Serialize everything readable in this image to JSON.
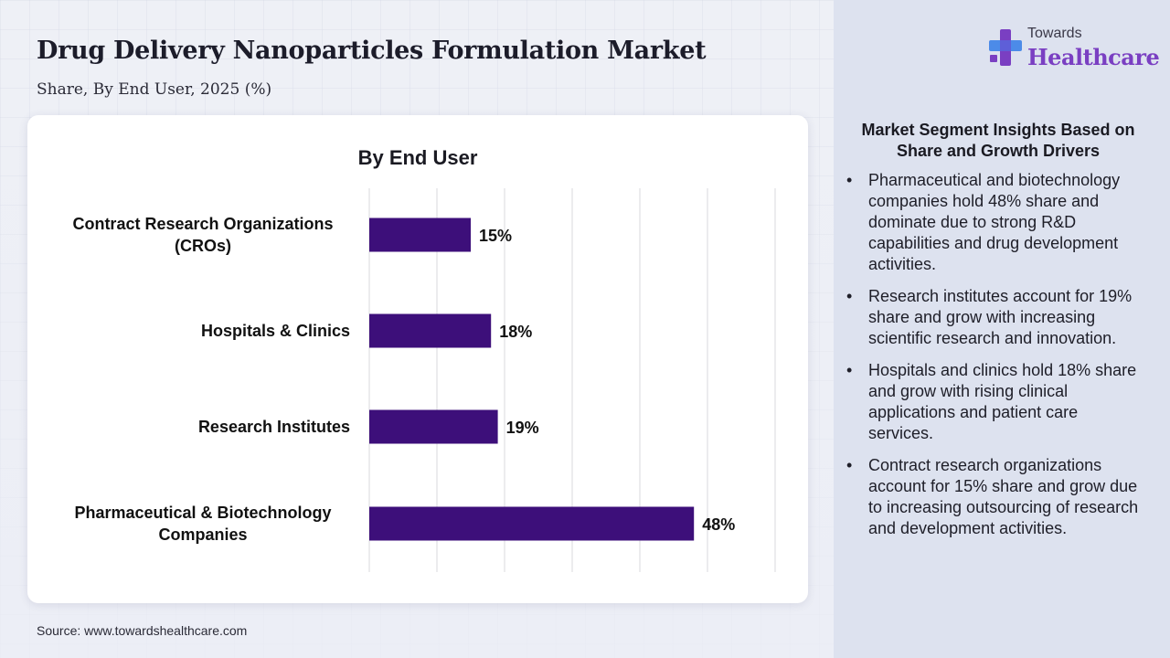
{
  "header": {
    "title": "Drug Delivery Nanoparticles Formulation Market",
    "subtitle": "Share, By End User, 2025 (%)"
  },
  "logo": {
    "top": "Towards",
    "main": "Healthcare"
  },
  "colors": {
    "bar": "#3d0f7a",
    "logo_purple": "#7a3fc2",
    "logo_blue": "#4c8be8"
  },
  "chart_data": {
    "type": "bar",
    "orientation": "horizontal",
    "title": "By End User",
    "categories": [
      [
        "Contract Research Organizations",
        "(CROs)"
      ],
      [
        "Hospitals & Clinics"
      ],
      [
        "Research Institutes"
      ],
      [
        "Pharmaceutical & Biotechnology",
        "Companies"
      ]
    ],
    "values": [
      15,
      18,
      19,
      48
    ],
    "labels": [
      "15%",
      "18%",
      "19%",
      "48%"
    ],
    "xlim": [
      0,
      60
    ],
    "gridlines": [
      0,
      10,
      20,
      30,
      40,
      50,
      60
    ],
    "xlabel": "",
    "ylabel": ""
  },
  "insights": {
    "title": "Market Segment Insights Based on Share and Growth Drivers",
    "items": [
      "Pharmaceutical and biotechnology companies hold 48% share and dominate due to strong R&D capabilities and drug development activities.",
      "Research institutes account for 19% share and grow with increasing scientific research and innovation.",
      "Hospitals and clinics hold 18% share and grow with rising clinical applications and patient care services.",
      "Contract research organizations account for 15% share and grow due to increasing outsourcing of research and development activities."
    ]
  },
  "source": "Source: www.towardshealthcare.com"
}
